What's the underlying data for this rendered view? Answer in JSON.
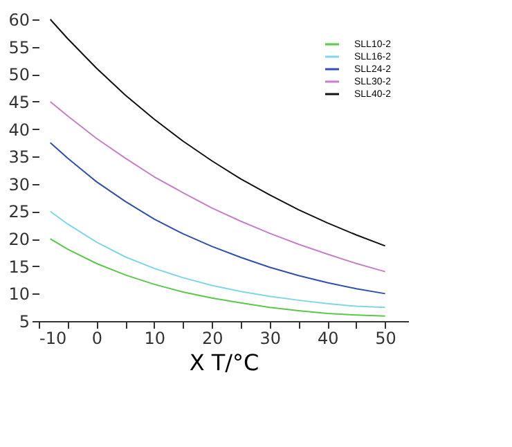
{
  "chart_data": {
    "type": "line",
    "xlabel": "X T/°C",
    "x": [
      -8,
      -5,
      0,
      5,
      10,
      15,
      20,
      25,
      30,
      35,
      40,
      45,
      50
    ],
    "series": [
      {
        "name": "SLL10-2",
        "color": "#5ac84a",
        "values": [
          20,
          18.1,
          15.5,
          13.4,
          11.7,
          10.3,
          9.2,
          8.3,
          7.5,
          6.9,
          6.4,
          6.1,
          5.9
        ]
      },
      {
        "name": "SLL16-2",
        "color": "#7fd6e6",
        "values": [
          25,
          22.7,
          19.4,
          16.7,
          14.6,
          12.9,
          11.5,
          10.4,
          9.5,
          8.8,
          8.2,
          7.7,
          7.5
        ]
      },
      {
        "name": "SLL24-2",
        "color": "#2f4fb0",
        "values": [
          37.5,
          34.7,
          30.4,
          26.8,
          23.6,
          20.9,
          18.6,
          16.6,
          14.8,
          13.3,
          12,
          10.9,
          10
        ]
      },
      {
        "name": "SLL30-2",
        "color": "#c77fc7",
        "values": [
          45,
          42.4,
          38.3,
          34.7,
          31.3,
          28.4,
          25.6,
          23.2,
          21,
          19,
          17.2,
          15.5,
          14
        ]
      },
      {
        "name": "SLL40-2",
        "color": "#111111",
        "values": [
          60,
          56.5,
          51.1,
          46.2,
          41.8,
          37.8,
          34.2,
          30.9,
          28,
          25.3,
          22.9,
          20.7,
          18.7
        ]
      }
    ],
    "xlim": [
      -10,
      54
    ],
    "ylim": [
      5,
      60
    ],
    "xticks": [
      -10,
      {
        "value": -5,
        "label": null
      },
      0,
      {
        "value": 5,
        "label": null
      },
      10,
      {
        "value": 15,
        "label": null
      },
      20,
      {
        "value": 25,
        "label": null
      },
      30,
      {
        "value": 35,
        "label": null
      },
      40,
      {
        "value": 45,
        "label": null
      },
      50
    ],
    "yticks": [
      5,
      10,
      15,
      20,
      25,
      30,
      35,
      40,
      45,
      50,
      55,
      60
    ],
    "grid": false,
    "legend": "top right",
    "marker": "none",
    "line_style": "solid"
  }
}
